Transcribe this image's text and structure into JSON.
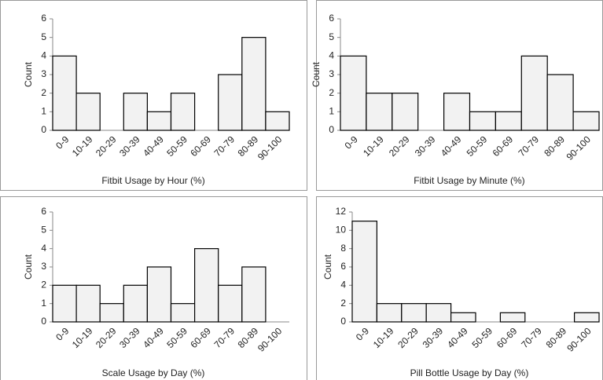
{
  "chart_data": [
    {
      "type": "bar",
      "xlabel": "Fitbit Usage by Hour (%)",
      "ylabel": "Count",
      "categories": [
        "0-9",
        "10-19",
        "20-29",
        "30-39",
        "40-49",
        "50-59",
        "60-69",
        "70-79",
        "80-89",
        "90-100"
      ],
      "values": [
        4,
        2,
        0,
        2,
        1,
        2,
        0,
        3,
        5,
        1
      ],
      "color": "#f2f2f2",
      "ylim": [
        0,
        6
      ],
      "yticks": [
        0,
        1,
        2,
        3,
        4,
        5,
        6
      ]
    },
    {
      "type": "bar",
      "xlabel": "Fitbit Usage by Minute (%)",
      "ylabel": "Count",
      "categories": [
        "0-9",
        "10-19",
        "20-29",
        "30-39",
        "40-49",
        "50-59",
        "60-69",
        "70-79",
        "80-89",
        "90-100"
      ],
      "values": [
        4,
        2,
        2,
        0,
        2,
        1,
        1,
        4,
        3,
        1
      ],
      "color": "#f2f2f2",
      "ylim": [
        0,
        6
      ],
      "yticks": [
        0,
        1,
        2,
        3,
        4,
        5,
        6
      ]
    },
    {
      "type": "bar",
      "xlabel": "Scale Usage by Day (%)",
      "ylabel": "Count",
      "categories": [
        "0-9",
        "10-19",
        "20-29",
        "30-39",
        "40-49",
        "50-59",
        "60-69",
        "70-79",
        "80-89",
        "90-100"
      ],
      "values": [
        2,
        2,
        1,
        2,
        3,
        1,
        4,
        2,
        3,
        0
      ],
      "color": "#f2f2f2",
      "ylim": [
        0,
        6
      ],
      "yticks": [
        0,
        1,
        2,
        3,
        4,
        5,
        6
      ]
    },
    {
      "type": "bar",
      "xlabel": "Pill Bottle Usage by Day (%)",
      "ylabel": "Count",
      "categories": [
        "0-9",
        "10-19",
        "20-29",
        "30-39",
        "40-49",
        "50-59",
        "60-69",
        "70-79",
        "80-89",
        "90-100"
      ],
      "values": [
        11,
        2,
        2,
        2,
        1,
        0,
        1,
        0,
        0,
        1
      ],
      "color": "#f2f2f2",
      "ylim": [
        0,
        12
      ],
      "yticks": [
        0,
        2,
        4,
        6,
        8,
        10,
        12
      ]
    }
  ]
}
